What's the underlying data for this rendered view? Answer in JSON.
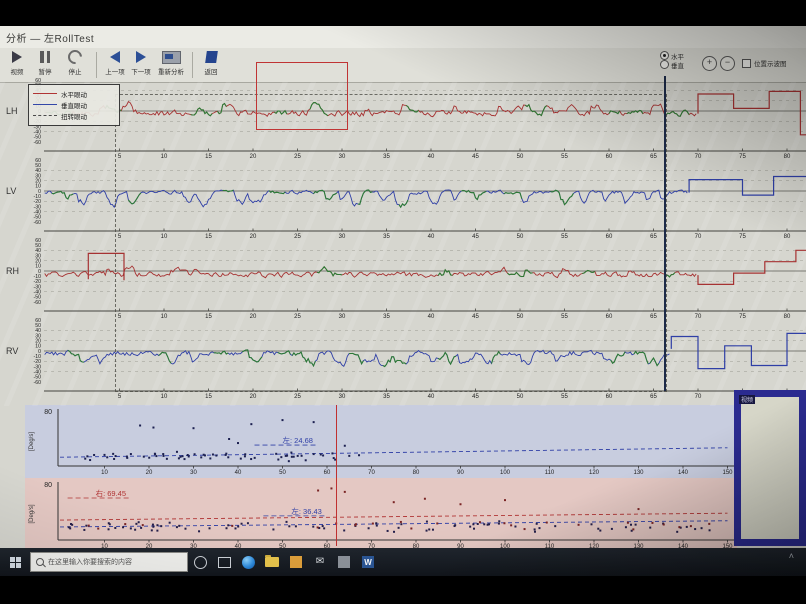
{
  "window": {
    "title": "分析 — 左RollTest"
  },
  "toolbar": {
    "buttons": [
      {
        "label": "视频",
        "icon": "play-icon"
      },
      {
        "label": "暂停",
        "icon": "pause-icon"
      },
      {
        "label": "停止",
        "icon": "stop-icon"
      },
      {
        "label": "上一项",
        "icon": "arrow-left-icon"
      },
      {
        "label": "下一项",
        "icon": "arrow-right-icon"
      },
      {
        "label": "重新分析",
        "icon": "chart-image-icon"
      },
      {
        "label": "返回",
        "icon": "flag-icon"
      }
    ],
    "radios": [
      {
        "label": "水平",
        "selected": true
      },
      {
        "label": "垂直",
        "selected": false
      }
    ],
    "zoom_in": "+",
    "zoom_out": "−",
    "checkbox_label": "位置示波图"
  },
  "legend": {
    "items": [
      {
        "label": "水平眼动",
        "color": "#b03434",
        "dash": false
      },
      {
        "label": "垂直眼动",
        "color": "#3347a8",
        "dash": false
      },
      {
        "label": "扭转眼动",
        "color": "#4a4a4a",
        "dash": true
      }
    ]
  },
  "video_panel": {
    "label": "视频"
  },
  "taskbar": {
    "search_text": "在这里输入你要搜索的内容"
  },
  "chart_data": {
    "type": "line",
    "x_axis": {
      "unit": "s",
      "range": [
        0,
        83
      ],
      "ticks": [
        5,
        10,
        15,
        20,
        25,
        30,
        35,
        40,
        45,
        50,
        55,
        60,
        65,
        70,
        75,
        80
      ]
    },
    "y_axis": {
      "range": [
        -60,
        60
      ],
      "ticks": [
        60,
        50,
        40,
        30,
        20,
        10,
        0,
        -10,
        -20,
        -30,
        -40,
        -50,
        -60
      ]
    },
    "cursor_t": 66.3,
    "selection_t": [
      4.5,
      66.3
    ],
    "channels": [
      {
        "name": "LH",
        "color": "#a63232",
        "baseline": -4,
        "noise": 9,
        "spike_amp": 22,
        "spike_rate": 0.05,
        "seed": 11,
        "green_seed": 91,
        "steps": [
          [
            [
              70,
              -5
            ],
            [
              70,
              33
            ],
            [
              74,
              33
            ],
            [
              74,
              5
            ],
            [
              78,
              5
            ],
            [
              78,
              38
            ],
            [
              81.5,
              38
            ],
            [
              81.5,
              -46
            ],
            [
              83.2,
              -46
            ]
          ]
        ]
      },
      {
        "name": "LV",
        "color": "#2f3fa6",
        "baseline": -2,
        "noise": 6,
        "spike_amp": -30,
        "spike_rate": 0.09,
        "seed": 22,
        "green_seed": 92,
        "steps": [
          [
            [
              69,
              -3
            ],
            [
              69,
              22
            ],
            [
              75,
              22
            ],
            [
              75,
              -8
            ],
            [
              78.5,
              -8
            ],
            [
              78.5,
              28
            ],
            [
              83.2,
              28
            ]
          ]
        ]
      },
      {
        "name": "RH",
        "color": "#a63232",
        "baseline": -7,
        "noise": 8,
        "spike_amp": 16,
        "spike_rate": 0.05,
        "seed": 33,
        "green_seed": 93,
        "steps": [
          [
            [
              1.5,
              -16
            ],
            [
              1.5,
              34
            ],
            [
              5.5,
              34
            ],
            [
              5.5,
              -18
            ]
          ],
          [
            [
              70,
              -8
            ],
            [
              70,
              -26
            ],
            [
              74,
              -26
            ],
            [
              74,
              -4
            ],
            [
              77.5,
              -4
            ],
            [
              77.5,
              18
            ],
            [
              81,
              18
            ],
            [
              81,
              40
            ],
            [
              83.2,
              40
            ]
          ]
        ]
      },
      {
        "name": "RV",
        "color": "#2f3fa6",
        "baseline": -4,
        "noise": 8,
        "spike_amp": -26,
        "spike_rate": 0.08,
        "seed": 44,
        "green_seed": 94,
        "steps": [
          [
            [
              67,
              4
            ],
            [
              67,
              28
            ],
            [
              70,
              28
            ],
            [
              70,
              -34
            ],
            [
              73,
              -34
            ],
            [
              73,
              10
            ],
            [
              76,
              10
            ],
            [
              76,
              -28
            ],
            [
              80,
              -28
            ],
            [
              80,
              34
            ],
            [
              83.2,
              34
            ]
          ]
        ]
      }
    ],
    "scatter_cursor_x": 62,
    "spv_scatter": [
      {
        "name": "spv-top",
        "ylabel": "[Deg/s]",
        "ymax": 80,
        "ymax_label": "80",
        "xticks": [
          10,
          20,
          30,
          40,
          50,
          60,
          70,
          80,
          90,
          100,
          110,
          120,
          130,
          140,
          150
        ],
        "annotations": [
          {
            "text": "左: 24.68",
            "color": "#2f3fa6",
            "x": 50,
            "y": 34
          }
        ],
        "trends": [
          {
            "color": "#2f3fa6",
            "from": [
              0,
              13
            ],
            "to": [
              150,
              27
            ]
          }
        ],
        "cluster": {
          "seed": 71,
          "n": 62,
          "x": [
            1,
            68
          ],
          "y_mean": 14,
          "y_spread": 9,
          "color": "#1c2050"
        },
        "outliers": [
          [
            18,
            60
          ],
          [
            21,
            57
          ],
          [
            30,
            56
          ],
          [
            43,
            62
          ],
          [
            50,
            68
          ],
          [
            57,
            65
          ],
          [
            38,
            40
          ],
          [
            40,
            34
          ],
          [
            64,
            30
          ]
        ],
        "outlier_color": "#1c2050"
      },
      {
        "name": "spv-bottom",
        "ylabel": "[Deg/s]",
        "ymax": 80,
        "ymax_label": "80",
        "xticks": [
          10,
          20,
          30,
          40,
          50,
          60,
          70,
          80,
          90,
          100,
          110,
          120,
          130,
          140,
          150
        ],
        "annotations": [
          {
            "text": "右: 69.45",
            "color": "#b03434",
            "x": 8,
            "y": 64
          },
          {
            "text": "左: 36.43",
            "color": "#2f3fa6",
            "x": 52,
            "y": 38
          }
        ],
        "trends": [
          {
            "color": "#b03434",
            "from": [
              0,
              29
            ],
            "to": [
              150,
              39
            ]
          },
          {
            "color": "#2f3fa6",
            "from": [
              0,
              19
            ],
            "to": [
              150,
              28
            ]
          }
        ],
        "cluster": {
          "seed": 72,
          "n": 88,
          "x": [
            1,
            146
          ],
          "y_mean": 19,
          "y_spread": 10,
          "color": "#241f4a"
        },
        "cluster2": {
          "seed": 73,
          "n": 26,
          "x": [
            1,
            146
          ],
          "y_mean": 22,
          "y_spread": 9,
          "color": "#7a2424"
        },
        "outliers": [
          [
            75,
            55
          ],
          [
            82,
            60
          ],
          [
            90,
            52
          ],
          [
            100,
            58
          ],
          [
            58,
            72
          ],
          [
            61,
            75
          ],
          [
            64,
            70
          ],
          [
            130,
            45
          ]
        ],
        "outlier_color": "#7a2424"
      }
    ]
  }
}
